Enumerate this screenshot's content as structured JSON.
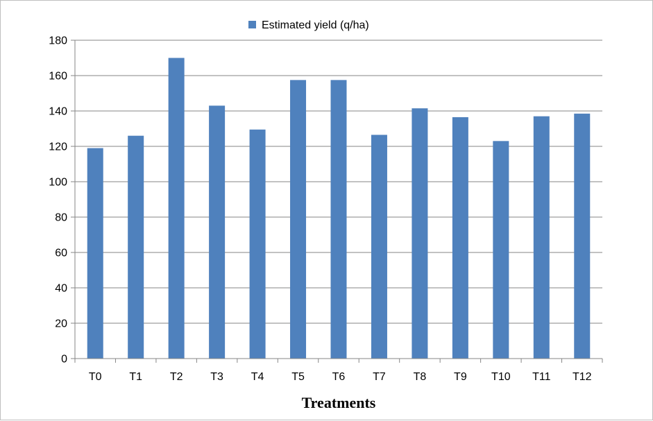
{
  "chart_data": {
    "type": "bar",
    "title": "",
    "xlabel": "Treatments",
    "ylabel": "",
    "categories": [
      "T0",
      "T1",
      "T2",
      "T3",
      "T4",
      "T5",
      "T6",
      "T7",
      "T8",
      "T9",
      "T10",
      "T11",
      "T12"
    ],
    "series": [
      {
        "name": "Estimated yield (q/ha)",
        "values": [
          119,
          126,
          170,
          143,
          129.5,
          157.5,
          157.5,
          126.5,
          141.5,
          136.5,
          123,
          137,
          138.5
        ],
        "color": "#4f81bd"
      }
    ],
    "ylim": [
      0,
      180
    ],
    "yticks": [
      0,
      20,
      40,
      60,
      80,
      100,
      120,
      140,
      160,
      180
    ],
    "grid": true,
    "legend_position": "top"
  }
}
